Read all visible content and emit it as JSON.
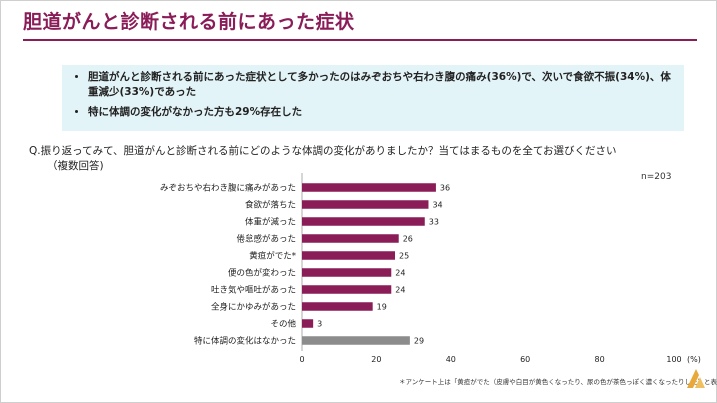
{
  "slide": {
    "title": "胆道がんと診断される前にあった症状",
    "summary": [
      "胆道がんと診断される前にあった症状として多かったのはみぞおちや右わき腹の痛み(36%)で、次いで食欲不振(34%)、体重減少(33%)であった",
      "特に体調の変化がなかった方も29%存在した"
    ],
    "question_line1": "Q.振り返ってみて、胆道がんと診断される前にどのような体調の変化がありましたか？当てはまるものを全てお選びください",
    "question_line2": "（複数回答)",
    "n_label": "n=203",
    "footnote": "＊アンケート上は「黄疸がでた（皮膚や白目が黄色くなったり、尿の色が茶色っぽく濃くなったりした）と表記"
  },
  "colors": {
    "accent": "#8a1c58",
    "bar": "#8a1c58",
    "bar_none": "#8c8c8c",
    "summary_bg": "#e3f4f8",
    "logo": "#e8a93a"
  },
  "chart_data": {
    "type": "bar",
    "orientation": "horizontal",
    "categories": [
      "みぞおちや右わき腹に痛みがあった",
      "食欲が落ちた",
      "体重が減った",
      "倦怠感があった",
      "黄疸がでた*",
      "便の色が変わった",
      "吐き気や嘔吐があった",
      "全身にかゆみがあった",
      "その他",
      "特に体調の変化はなかった"
    ],
    "values": [
      36,
      34,
      33,
      26,
      25,
      24,
      24,
      19,
      3,
      29
    ],
    "highlight_index": 9,
    "xlim": [
      0,
      100
    ],
    "xticks": [
      0,
      20,
      40,
      60,
      80,
      100
    ],
    "x_unit": "(%)",
    "grid": false
  }
}
